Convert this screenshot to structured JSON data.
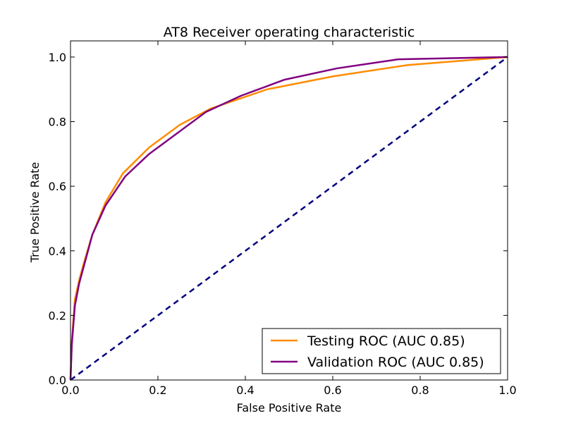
{
  "chart_data": {
    "type": "line",
    "title": "AT8 Receiver operating characteristic",
    "xlabel": "False Positive Rate",
    "ylabel": "True Positive Rate",
    "xlim": [
      0.0,
      1.0
    ],
    "ylim": [
      0.0,
      1.05
    ],
    "xticks": [
      "0.0",
      "0.2",
      "0.4",
      "0.6",
      "0.8",
      "1.0"
    ],
    "yticks": [
      "0.0",
      "0.2",
      "0.4",
      "0.6",
      "0.8",
      "1.0"
    ],
    "grid": false,
    "legend_position": "lower-right",
    "series": [
      {
        "name": "Testing ROC (AUC 0.85)",
        "color": "#ff8c00",
        "x": [
          0.0,
          0.003,
          0.01,
          0.02,
          0.03,
          0.05,
          0.08,
          0.12,
          0.18,
          0.25,
          0.32,
          0.45,
          0.6,
          0.77,
          1.0
        ],
        "y": [
          0.0,
          0.12,
          0.25,
          0.31,
          0.36,
          0.45,
          0.55,
          0.64,
          0.72,
          0.79,
          0.84,
          0.9,
          0.94,
          0.975,
          1.0
        ]
      },
      {
        "name": "Validation ROC (AUC 0.85)",
        "color": "#800080",
        "x": [
          0.0,
          0.003,
          0.01,
          0.02,
          0.03,
          0.05,
          0.08,
          0.125,
          0.18,
          0.24,
          0.31,
          0.39,
          0.49,
          0.61,
          0.75,
          1.0
        ],
        "y": [
          0.0,
          0.11,
          0.23,
          0.3,
          0.35,
          0.45,
          0.54,
          0.63,
          0.7,
          0.76,
          0.83,
          0.88,
          0.93,
          0.965,
          0.993,
          1.0
        ]
      }
    ],
    "reference_line": {
      "color": "#000080",
      "style": "dashed",
      "x": [
        0.0,
        1.0
      ],
      "y": [
        0.0,
        1.0
      ]
    }
  }
}
